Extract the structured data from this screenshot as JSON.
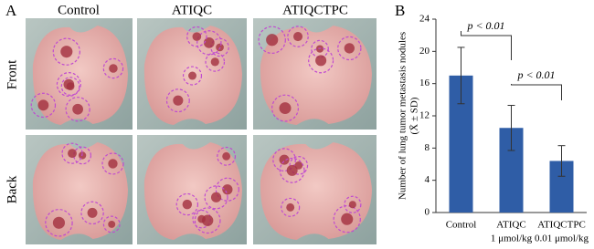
{
  "panel_a": {
    "label": "A",
    "columns": [
      "Control",
      "ATIQC",
      "ATIQCTPC"
    ],
    "rows": [
      "Front",
      "Back"
    ]
  },
  "chart_data": {
    "type": "bar",
    "label": "B",
    "ylabel": [
      "Number of lung tumor metastasis nodules",
      "(X̄ ± SD)"
    ],
    "categories": [
      [
        "Control"
      ],
      [
        "ATIQC",
        "1 μmol/kg"
      ],
      [
        "ATIQCTPC",
        "0.01 μmol/kg"
      ]
    ],
    "values": [
      17,
      10.5,
      6.4
    ],
    "errors": [
      3.5,
      2.8,
      1.9
    ],
    "color": "#2f5da6",
    "ylim": [
      0,
      24
    ],
    "yticks": [
      0,
      4,
      8,
      12,
      16,
      20,
      24
    ],
    "annotations": [
      "p < 0.01",
      "p < 0.01"
    ]
  }
}
